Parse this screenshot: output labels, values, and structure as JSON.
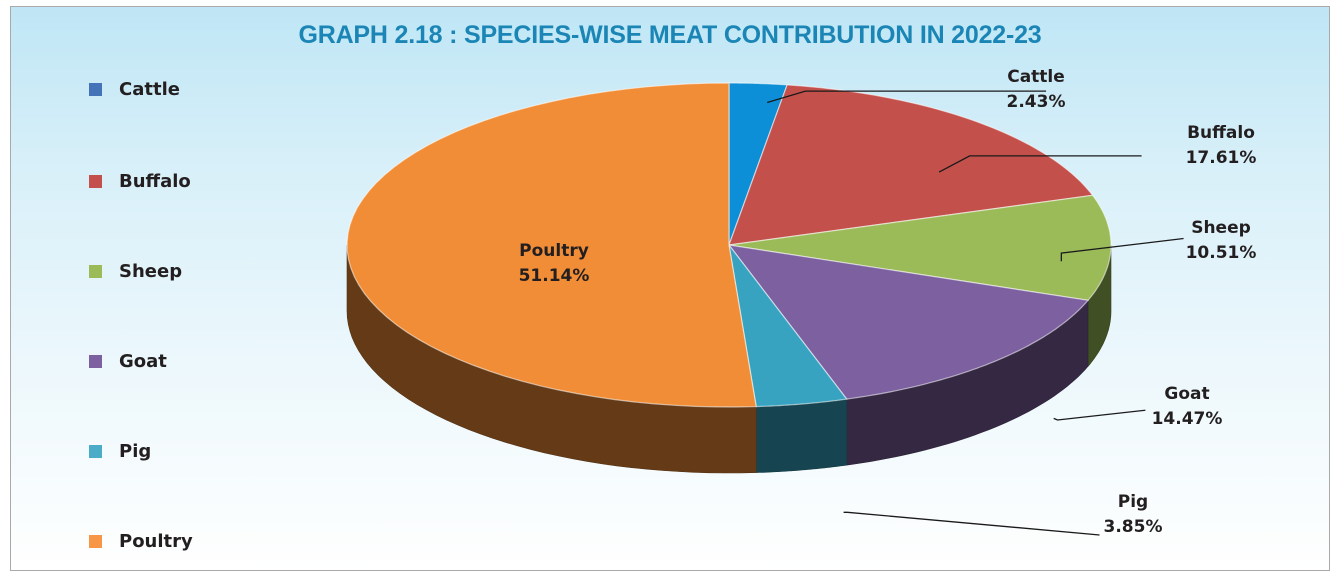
{
  "chart_data": {
    "type": "pie",
    "title": "GRAPH 2.18 : SPECIES-WISE MEAT CONTRIBUTION IN 2022-23",
    "legend_position": "left",
    "slices": [
      {
        "name": "Cattle",
        "value": 2.43,
        "label": "2.43%",
        "color": "#0c8fd6"
      },
      {
        "name": "Buffalo",
        "value": 17.61,
        "label": "17.61%",
        "color": "#c3504b"
      },
      {
        "name": "Sheep",
        "value": 10.51,
        "label": "10.51%",
        "color": "#9bbb59"
      },
      {
        "name": "Goat",
        "value": 14.47,
        "label": "14.47%",
        "color": "#7d60a0"
      },
      {
        "name": "Pig",
        "value": 3.85,
        "label": "3.85%",
        "color": "#37a3c0"
      },
      {
        "name": "Poultry",
        "value": 51.14,
        "label": "51.14%",
        "color": "#f18d36"
      }
    ]
  },
  "legend_colors": [
    "#4473b8",
    "#c3504b",
    "#9bbb59",
    "#7d60a0",
    "#4aacc6",
    "#f79646"
  ]
}
